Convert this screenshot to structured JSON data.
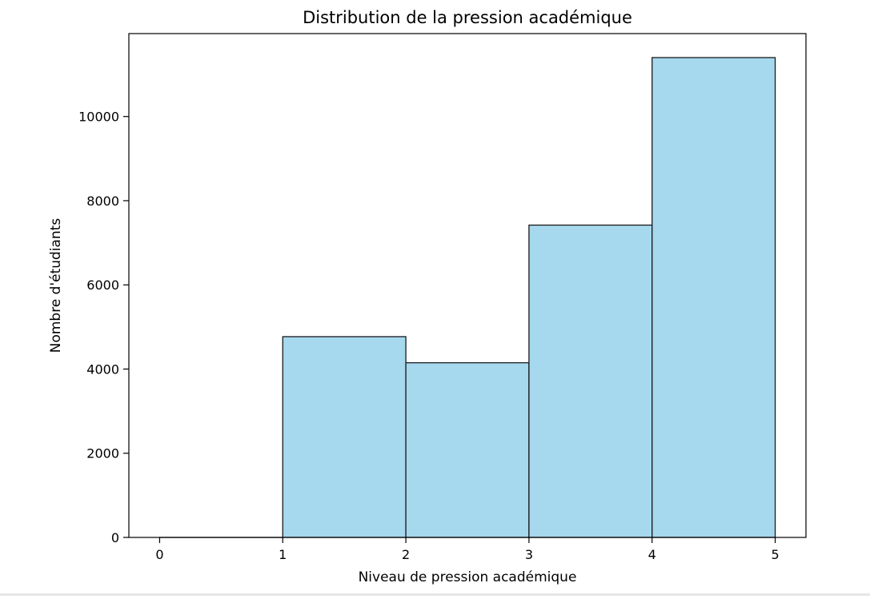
{
  "chart_data": {
    "type": "bar",
    "title": "Distribution de la pression académique",
    "xlabel": "Niveau de pression académique",
    "ylabel": "Nombre d'étudiants",
    "bins": [
      {
        "x0": 0,
        "x1": 1,
        "value": 0
      },
      {
        "x0": 1,
        "x1": 2,
        "value": 4770
      },
      {
        "x0": 2,
        "x1": 3,
        "value": 4150
      },
      {
        "x0": 3,
        "x1": 4,
        "value": 7420
      },
      {
        "x0": 4,
        "x1": 5,
        "value": 11400
      }
    ],
    "xlim": [
      -0.25,
      5.25
    ],
    "ylim": [
      0,
      11970
    ],
    "xticks": [
      0,
      1,
      2,
      3,
      4,
      5
    ],
    "yticks": [
      0,
      2000,
      4000,
      6000,
      8000,
      10000
    ],
    "bar_color": "#a6d8ee",
    "edge_color": "#1a1a1a",
    "grid": false,
    "legend": "none"
  }
}
